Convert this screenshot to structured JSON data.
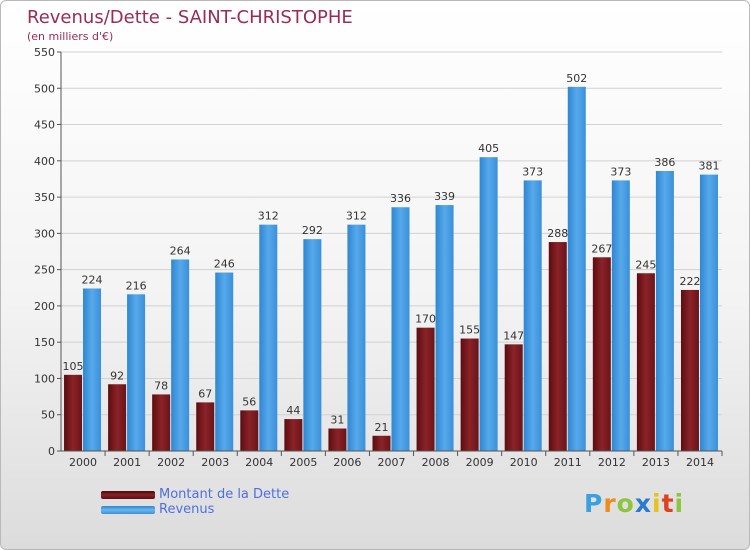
{
  "header": {
    "title": "Revenus/Dette - SAINT-CHRISTOPHE",
    "subtitle": "(en milliers d'€)"
  },
  "legend": {
    "items": [
      "Montant de la Dette",
      "Revenus"
    ]
  },
  "logo": {
    "text": "Proxiti",
    "letters": [
      "P",
      "r",
      "o",
      "x",
      "i",
      "t",
      "i"
    ],
    "colors": [
      "#3aa0e0",
      "#f08c1e",
      "#8cc63e",
      "#2a7bd0",
      "#e8c21a",
      "#e0401e",
      "#8cc63e"
    ]
  },
  "colors": {
    "dette": "#7a1a1e",
    "revenus": "#3f95dc",
    "title": "#9c2a55",
    "legend_text": "#4f6fe0"
  },
  "chart_data": {
    "type": "bar",
    "title": "Revenus/Dette - SAINT-CHRISTOPHE",
    "subtitle": "(en milliers d'€)",
    "xlabel": "",
    "ylabel": "",
    "categories": [
      "2000",
      "2001",
      "2002",
      "2003",
      "2004",
      "2005",
      "2006",
      "2007",
      "2008",
      "2009",
      "2010",
      "2011",
      "2012",
      "2013",
      "2014"
    ],
    "series": [
      {
        "name": "Montant de la Dette",
        "values": [
          105,
          92,
          78,
          67,
          56,
          44,
          31,
          21,
          170,
          155,
          147,
          288,
          267,
          245,
          222
        ]
      },
      {
        "name": "Revenus",
        "values": [
          224,
          216,
          264,
          246,
          312,
          292,
          312,
          336,
          339,
          405,
          373,
          502,
          373,
          386,
          381
        ]
      }
    ],
    "ylim": [
      0,
      550
    ],
    "yticks": [
      0,
      50,
      100,
      150,
      200,
      250,
      300,
      350,
      400,
      450,
      500,
      550
    ],
    "grid": "horizontal",
    "legend_position": "bottom-left"
  }
}
